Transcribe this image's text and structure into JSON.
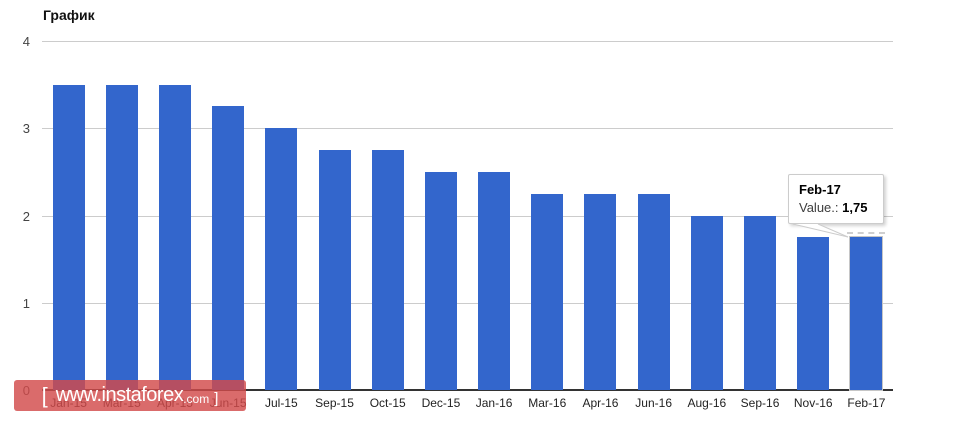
{
  "title": "График",
  "chart_data": {
    "type": "bar",
    "title": "График",
    "categories": [
      "Jan-15",
      "Mar-15",
      "Apr-15",
      "Jun-15",
      "Jul-15",
      "Sep-15",
      "Oct-15",
      "Dec-15",
      "Jan-16",
      "Mar-16",
      "Apr-16",
      "Jun-16",
      "Aug-16",
      "Sep-16",
      "Nov-16",
      "Feb-17"
    ],
    "values": [
      3.5,
      3.5,
      3.5,
      3.25,
      3,
      2.75,
      2.75,
      2.5,
      2.5,
      2.25,
      2.25,
      2.25,
      2,
      2,
      1.75,
      1.75
    ],
    "xlabel": "",
    "ylabel": "",
    "ylim": [
      0,
      4
    ],
    "y_ticks": [
      4,
      3,
      2,
      1,
      0
    ],
    "grid": true,
    "legend_position": "none",
    "bar_color": "#3366CC"
  },
  "tooltip": {
    "category": "Feb-17",
    "value_label": "Value.:",
    "value": "1,75",
    "target_index": 15
  },
  "watermark": {
    "bracket_left": "[",
    "domain": "www.instaforex",
    "tld": ".com",
    "bracket_right": "]"
  },
  "colors": {
    "bar": "#3366CC",
    "gridline": "#cccccc",
    "axis": "#333333",
    "watermark_bg": "rgba(210,75,75,0.82)",
    "tooltip_border": "#cccccc"
  }
}
